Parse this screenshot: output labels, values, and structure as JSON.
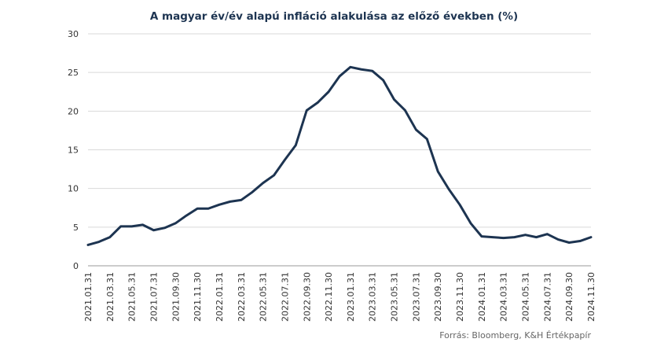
{
  "chart_data": {
    "type": "line",
    "title": "A magyar év/év alapú infláció alakulása az előző években (%)",
    "source": "Forrás: Bloomberg, K&H Értékpapír",
    "xlabel": "",
    "ylabel": "",
    "ylim": [
      0,
      30
    ],
    "yticks": [
      0,
      5,
      10,
      15,
      20,
      25,
      30
    ],
    "grid": "horizontal",
    "line_color": "#1d3451",
    "x": [
      "2021.01.31",
      "2021.02.28",
      "2021.03.31",
      "2021.04.30",
      "2021.05.31",
      "2021.06.30",
      "2021.07.31",
      "2021.08.31",
      "2021.09.30",
      "2021.10.31",
      "2021.11.30",
      "2021.12.31",
      "2022.01.31",
      "2022.02.28",
      "2022.03.31",
      "2022.04.30",
      "2022.05.31",
      "2022.06.30",
      "2022.07.31",
      "2022.08.31",
      "2022.09.30",
      "2022.10.31",
      "2022.11.30",
      "2022.12.31",
      "2023.01.31",
      "2023.02.28",
      "2023.03.31",
      "2023.04.30",
      "2023.05.31",
      "2023.06.30",
      "2023.07.31",
      "2023.08.31",
      "2023.09.30",
      "2023.10.31",
      "2023.11.30",
      "2023.12.31",
      "2024.01.31",
      "2024.02.29",
      "2024.03.31",
      "2024.04.30",
      "2024.05.31",
      "2024.06.30",
      "2024.07.31",
      "2024.08.31",
      "2024.09.30",
      "2024.10.31",
      "2024.11.30"
    ],
    "xtick_labels": [
      "2021.01.31",
      "2021.03.31",
      "2021.05.31",
      "2021.07.31",
      "2021.09.30",
      "2021.11.30",
      "2022.01.31",
      "2022.03.31",
      "2022.05.31",
      "2022.07.31",
      "2022.09.30",
      "2022.11.30",
      "2023.01.31",
      "2023.03.31",
      "2023.05.31",
      "2023.07.31",
      "2023.09.30",
      "2023.11.30",
      "2024.01.31",
      "2024.03.31",
      "2024.05.31",
      "2024.07.31",
      "2024.09.30",
      "2024.11.30"
    ],
    "series": [
      {
        "values": [
          2.7,
          3.1,
          3.7,
          5.1,
          5.1,
          5.3,
          4.6,
          4.9,
          5.5,
          6.5,
          7.4,
          7.4,
          7.9,
          8.3,
          8.5,
          9.5,
          10.7,
          11.7,
          13.7,
          15.6,
          20.1,
          21.1,
          22.5,
          24.5,
          25.7,
          25.4,
          25.2,
          24.0,
          21.5,
          20.1,
          17.6,
          16.4,
          12.2,
          9.9,
          7.9,
          5.5,
          3.8,
          3.7,
          3.6,
          3.7,
          4.0,
          3.7,
          4.1,
          3.4,
          3.0,
          3.2,
          3.7
        ]
      }
    ]
  }
}
